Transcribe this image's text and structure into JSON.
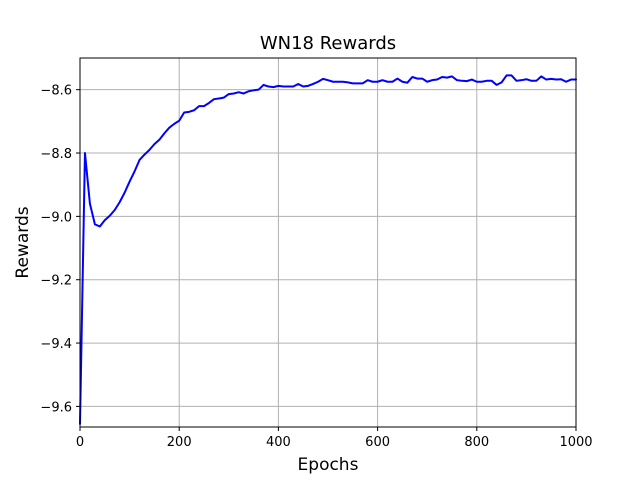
{
  "chart_data": {
    "type": "line",
    "title": "WN18 Rewards",
    "xlabel": "Epochs",
    "ylabel": "Rewards",
    "xlim": [
      0,
      1000
    ],
    "ylim": [
      -9.665,
      -8.5
    ],
    "xticks": [
      0,
      200,
      400,
      600,
      800,
      1000
    ],
    "yticks": [
      -9.6,
      -9.4,
      -9.2,
      -9.0,
      -8.8,
      -8.6
    ],
    "xtick_labels": [
      "0",
      "200",
      "400",
      "600",
      "800",
      "1000"
    ],
    "ytick_labels": [
      "−9.6",
      "−9.4",
      "−9.2",
      "−9.0",
      "−8.8",
      "−8.6"
    ],
    "grid": true,
    "series": [
      {
        "color": "#0000ff",
        "x": [
          0,
          10,
          20,
          30,
          40,
          50,
          60,
          70,
          80,
          90,
          100,
          110,
          120,
          130,
          140,
          150,
          160,
          170,
          180,
          190,
          200,
          210,
          220,
          230,
          240,
          250,
          260,
          270,
          280,
          290,
          300,
          310,
          320,
          330,
          340,
          350,
          360,
          370,
          380,
          390,
          400,
          410,
          420,
          430,
          440,
          450,
          460,
          470,
          480,
          490,
          500,
          510,
          520,
          530,
          540,
          550,
          560,
          570,
          580,
          590,
          600,
          610,
          620,
          630,
          640,
          650,
          660,
          670,
          680,
          690,
          700,
          710,
          720,
          730,
          740,
          750,
          760,
          770,
          780,
          790,
          800,
          810,
          820,
          830,
          840,
          850,
          860,
          870,
          880,
          890,
          900,
          910,
          920,
          930,
          940,
          950,
          960,
          970,
          980,
          990,
          1000
        ],
        "y": [
          -9.655,
          -8.8,
          -8.96,
          -9.025,
          -9.032,
          -9.012,
          -8.998,
          -8.98,
          -8.955,
          -8.925,
          -8.89,
          -8.858,
          -8.822,
          -8.805,
          -8.79,
          -8.772,
          -8.758,
          -8.738,
          -8.72,
          -8.708,
          -8.698,
          -8.672,
          -8.67,
          -8.665,
          -8.652,
          -8.652,
          -8.642,
          -8.63,
          -8.628,
          -8.625,
          -8.614,
          -8.612,
          -8.608,
          -8.612,
          -8.605,
          -8.602,
          -8.6,
          -8.585,
          -8.59,
          -8.592,
          -8.588,
          -8.59,
          -8.59,
          -8.59,
          -8.582,
          -8.59,
          -8.588,
          -8.582,
          -8.575,
          -8.566,
          -8.57,
          -8.575,
          -8.575,
          -8.575,
          -8.577,
          -8.58,
          -8.58,
          -8.58,
          -8.57,
          -8.575,
          -8.575,
          -8.57,
          -8.575,
          -8.575,
          -8.565,
          -8.575,
          -8.578,
          -8.56,
          -8.565,
          -8.565,
          -8.575,
          -8.57,
          -8.568,
          -8.56,
          -8.562,
          -8.558,
          -8.57,
          -8.572,
          -8.573,
          -8.568,
          -8.575,
          -8.575,
          -8.572,
          -8.572,
          -8.585,
          -8.577,
          -8.555,
          -8.555,
          -8.572,
          -8.57,
          -8.567,
          -8.572,
          -8.572,
          -8.558,
          -8.568,
          -8.566,
          -8.568,
          -8.567,
          -8.575,
          -8.568,
          -8.568
        ]
      }
    ]
  }
}
